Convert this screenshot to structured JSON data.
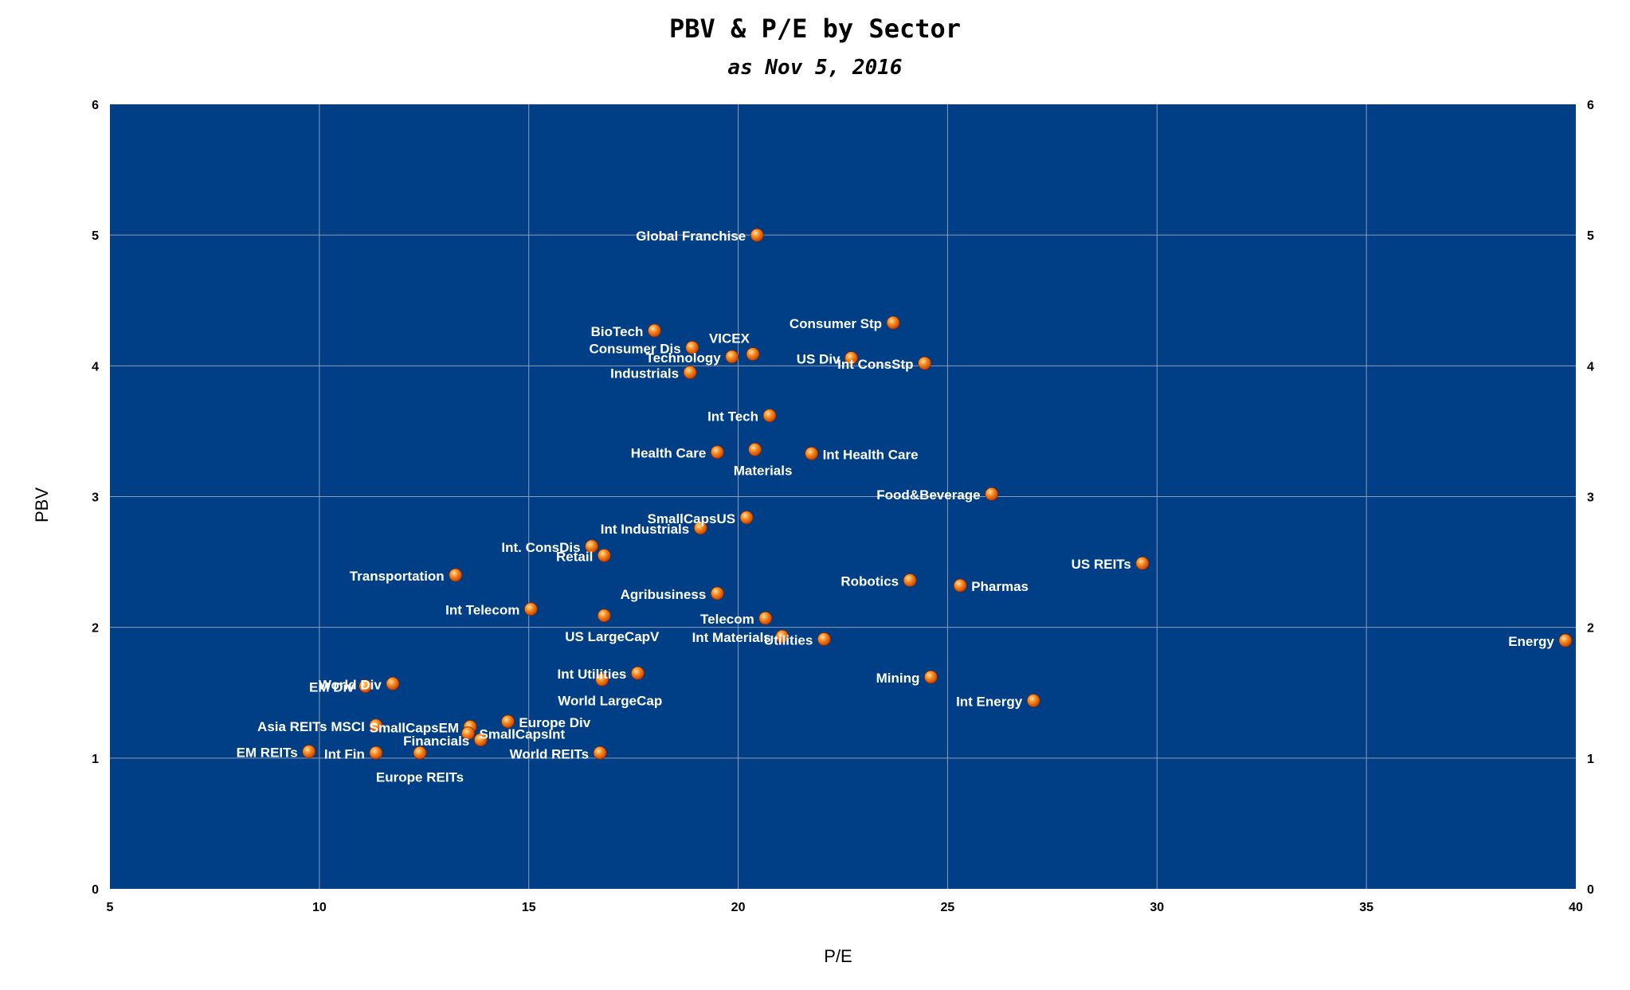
{
  "chart_data": {
    "type": "scatter",
    "title": "PBV & P/E by Sector",
    "subtitle": "as Nov 5, 2016",
    "xlabel": "P/E",
    "ylabel": "PBV",
    "xlim": [
      5,
      40
    ],
    "ylim": [
      0,
      6
    ],
    "x_ticks": [
      "5",
      "10",
      "15",
      "20",
      "25",
      "30",
      "35",
      "40"
    ],
    "y_ticks": [
      "0",
      "1",
      "2",
      "3",
      "4",
      "5",
      "6"
    ],
    "grid": true,
    "colors": {
      "plot_bg": "#003f85",
      "grid": "#8e9cb4",
      "marker": "#f06a10",
      "marker_highlight": "#ffd080",
      "label": "#ffffff"
    },
    "points": [
      {
        "label": "Global Franchise",
        "x": 20.45,
        "y": 5.0,
        "pos": "left"
      },
      {
        "label": "BioTech",
        "x": 18.0,
        "y": 4.27,
        "pos": "left"
      },
      {
        "label": "Consumer Dis",
        "x": 18.9,
        "y": 4.14,
        "pos": "left"
      },
      {
        "label": "VICEX",
        "x": 20.35,
        "y": 4.09,
        "pos": "above"
      },
      {
        "label": "Technology",
        "x": 19.85,
        "y": 4.07,
        "pos": "left"
      },
      {
        "label": "Industrials",
        "x": 18.85,
        "y": 3.95,
        "pos": "left"
      },
      {
        "label": "Consumer Stp",
        "x": 23.7,
        "y": 4.33,
        "pos": "left"
      },
      {
        "label": "US Div",
        "x": 22.7,
        "y": 4.06,
        "pos": "left"
      },
      {
        "label": "Int ConsStp",
        "x": 24.45,
        "y": 4.02,
        "pos": "left"
      },
      {
        "label": "Int Tech",
        "x": 20.75,
        "y": 3.62,
        "pos": "left"
      },
      {
        "label": "Health Care",
        "x": 19.5,
        "y": 3.34,
        "pos": "left"
      },
      {
        "label": "Materials",
        "x": 20.4,
        "y": 3.36,
        "pos": "belowleft"
      },
      {
        "label": "Int Health Care",
        "x": 21.75,
        "y": 3.33,
        "pos": "right"
      },
      {
        "label": "Food&Beverage",
        "x": 26.05,
        "y": 3.02,
        "pos": "left"
      },
      {
        "label": "SmallCapsUS",
        "x": 20.2,
        "y": 2.84,
        "pos": "left"
      },
      {
        "label": "Int Industrials",
        "x": 19.1,
        "y": 2.76,
        "pos": "left"
      },
      {
        "label": "Int. ConsDis",
        "x": 16.5,
        "y": 2.62,
        "pos": "left"
      },
      {
        "label": "Retail",
        "x": 16.8,
        "y": 2.55,
        "pos": "left"
      },
      {
        "label": "Transportation",
        "x": 13.25,
        "y": 2.4,
        "pos": "left"
      },
      {
        "label": "US REITs",
        "x": 29.65,
        "y": 2.49,
        "pos": "left"
      },
      {
        "label": "Robotics",
        "x": 24.1,
        "y": 2.36,
        "pos": "left"
      },
      {
        "label": "Pharmas",
        "x": 25.3,
        "y": 2.32,
        "pos": "right"
      },
      {
        "label": "Agribusiness",
        "x": 19.5,
        "y": 2.26,
        "pos": "left"
      },
      {
        "label": "Int Telecom",
        "x": 15.05,
        "y": 2.14,
        "pos": "left"
      },
      {
        "label": "US LargeCapV",
        "x": 16.8,
        "y": 2.09,
        "pos": "belowleft"
      },
      {
        "label": "Telecom",
        "x": 20.65,
        "y": 2.07,
        "pos": "left"
      },
      {
        "label": "Int Materials",
        "x": 21.05,
        "y": 1.93,
        "pos": "left"
      },
      {
        "label": "Utilities",
        "x": 22.05,
        "y": 1.91,
        "pos": "left"
      },
      {
        "label": "Energy",
        "x": 39.75,
        "y": 1.9,
        "pos": "left"
      },
      {
        "label": "World Div",
        "x": 11.75,
        "y": 1.57,
        "pos": "left"
      },
      {
        "label": "EM Div",
        "x": 11.1,
        "y": 1.55,
        "pos": "left"
      },
      {
        "label": "Int Utilities",
        "x": 17.6,
        "y": 1.65,
        "pos": "left"
      },
      {
        "label": "Mining",
        "x": 24.6,
        "y": 1.62,
        "pos": "left"
      },
      {
        "label": "World LargeCap",
        "x": 16.75,
        "y": 1.6,
        "pos": "belowleft"
      },
      {
        "label": "Int Energy",
        "x": 27.05,
        "y": 1.44,
        "pos": "left"
      },
      {
        "label": "Europe Div",
        "x": 14.5,
        "y": 1.28,
        "pos": "right"
      },
      {
        "label": "Asia REITs MSCI",
        "x": 11.35,
        "y": 1.25,
        "pos": "left"
      },
      {
        "label": "SmallCapsEM",
        "x": 13.6,
        "y": 1.24,
        "pos": "left"
      },
      {
        "label": "SmallCapsInt",
        "x": 13.55,
        "y": 1.19,
        "pos": "right"
      },
      {
        "label": "Financials",
        "x": 13.85,
        "y": 1.14,
        "pos": "left"
      },
      {
        "label": "EM REITs",
        "x": 9.75,
        "y": 1.05,
        "pos": "left"
      },
      {
        "label": "Int Fin",
        "x": 11.35,
        "y": 1.04,
        "pos": "left"
      },
      {
        "label": "Europe REITs",
        "x": 12.4,
        "y": 1.04,
        "pos": "belowright"
      },
      {
        "label": "World REITs",
        "x": 16.7,
        "y": 1.04,
        "pos": "left"
      }
    ]
  }
}
